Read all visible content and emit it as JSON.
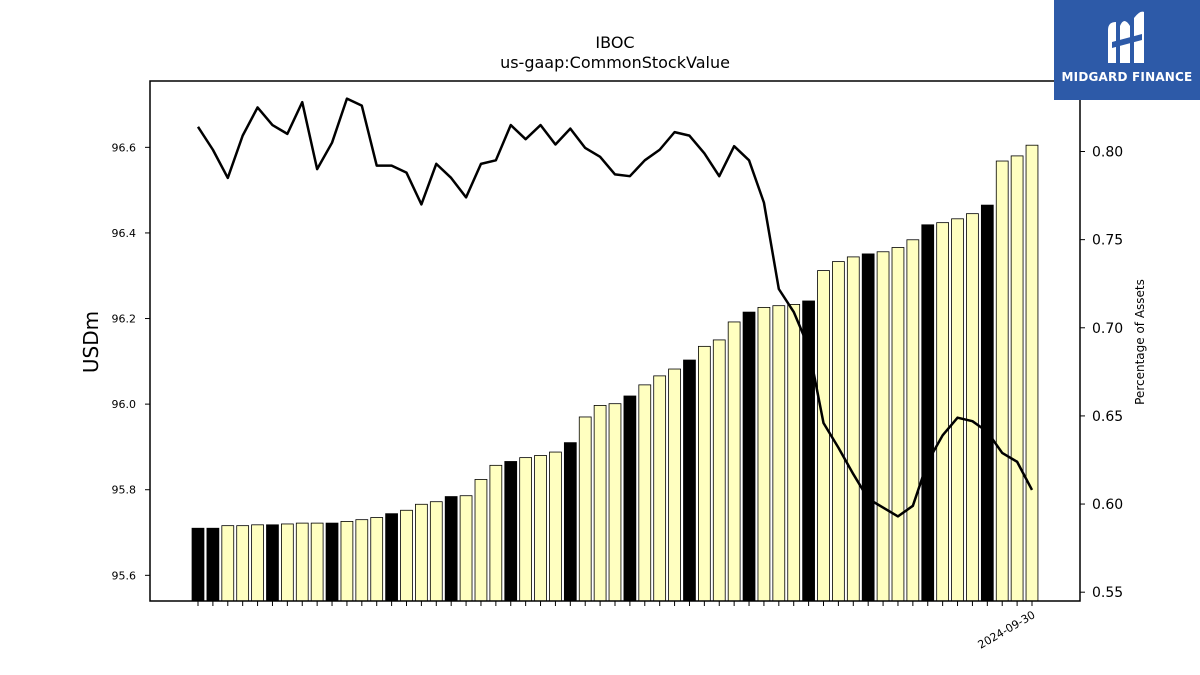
{
  "chart_data": {
    "type": "bar",
    "title": "IBOC",
    "subtitle": "us-gaap:CommonStockValue",
    "ylabel": "USDm",
    "y2label": "Percentage of Assets",
    "ylim": [
      95.54,
      96.755
    ],
    "y2lim": [
      0.545,
      0.84
    ],
    "yticks": [
      "95.6",
      "95.8",
      "96.0",
      "96.2",
      "96.4",
      "96.6"
    ],
    "y2ticks": [
      "0.55",
      "0.60",
      "0.65",
      "0.70",
      "0.75",
      "0.80"
    ],
    "categories": [
      "",
      "",
      "",
      "",
      "",
      "",
      "",
      "",
      "",
      "",
      "",
      "",
      "",
      "",
      "",
      "",
      "",
      "",
      "",
      "",
      "",
      "",
      "",
      "",
      "",
      "",
      "",
      "",
      "",
      "",
      "",
      "",
      "",
      "",
      "",
      "",
      "",
      "",
      "",
      "",
      "",
      "",
      "",
      "",
      "",
      "",
      "",
      "",
      "",
      "",
      "",
      "",
      "",
      "",
      "",
      "",
      "2024-09-30"
    ],
    "series": [
      {
        "type": "bar",
        "values": [
          95.71,
          95.71,
          95.716,
          95.716,
          95.718,
          95.718,
          95.72,
          95.722,
          95.722,
          95.722,
          95.726,
          95.73,
          95.735,
          95.744,
          95.752,
          95.766,
          95.772,
          95.784,
          95.786,
          95.824,
          95.857,
          95.866,
          95.875,
          95.88,
          95.888,
          95.91,
          95.97,
          95.997,
          96.001,
          96.019,
          96.045,
          96.066,
          96.082,
          96.103,
          96.135,
          96.15,
          96.192,
          96.215,
          96.226,
          96.23,
          96.233,
          96.241,
          96.312,
          96.333,
          96.344,
          96.351,
          96.356,
          96.366,
          96.384,
          96.419,
          96.424,
          96.433,
          96.445,
          96.465,
          96.568,
          96.58,
          96.605
        ],
        "year_end": [
          true,
          true,
          false,
          false,
          false,
          true,
          false,
          false,
          false,
          true,
          false,
          false,
          false,
          true,
          false,
          false,
          false,
          true,
          false,
          false,
          false,
          true,
          false,
          false,
          false,
          true,
          false,
          false,
          false,
          true,
          false,
          false,
          false,
          true,
          false,
          false,
          false,
          true,
          false,
          false,
          false,
          true,
          false,
          false,
          false,
          true,
          false,
          false,
          false,
          true,
          false,
          false,
          false,
          true,
          false,
          false,
          false
        ]
      },
      {
        "type": "line",
        "values": [
          0.814,
          0.801,
          0.785,
          0.809,
          0.825,
          0.815,
          0.81,
          0.828,
          0.79,
          0.805,
          0.83,
          0.826,
          0.792,
          0.792,
          0.788,
          0.77,
          0.793,
          0.785,
          0.774,
          0.793,
          0.795,
          0.815,
          0.807,
          0.815,
          0.804,
          0.813,
          0.802,
          0.797,
          0.787,
          0.786,
          0.795,
          0.801,
          0.811,
          0.809,
          0.799,
          0.786,
          0.803,
          0.795,
          0.771,
          0.722,
          0.709,
          0.689,
          0.646,
          0.632,
          0.617,
          0.603,
          0.598,
          0.593,
          0.599,
          0.624,
          0.639,
          0.649,
          0.647,
          0.641,
          0.629,
          0.624,
          0.608
        ]
      }
    ],
    "colors": {
      "bar_fill": "#ffffc0",
      "bar_year_end_fill": "#000000",
      "bar_edge": "#000000",
      "line": "#000000"
    }
  },
  "logo": {
    "text": "MIDGARD FINANCE",
    "icon": "midgard-logo-icon",
    "bg": "#2d5aa8"
  }
}
